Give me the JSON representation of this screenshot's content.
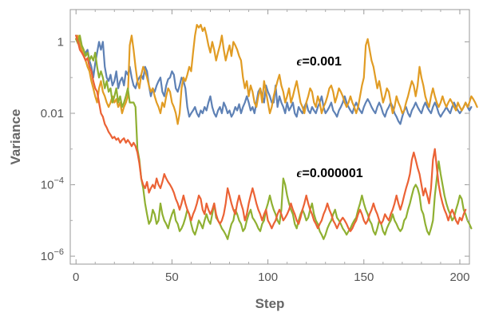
{
  "chart_data": {
    "type": "line",
    "xlabel": "Step",
    "ylabel": "Variance",
    "xlim": [
      -3,
      205
    ],
    "ylim": [
      6e-07,
      8
    ],
    "yscale": "log",
    "xticks": [
      {
        "value": 0,
        "label": "0"
      },
      {
        "value": 50,
        "label": "50"
      },
      {
        "value": 100,
        "label": "100"
      },
      {
        "value": 150,
        "label": "150"
      },
      {
        "value": 200,
        "label": "200"
      }
    ],
    "yticks": [
      {
        "value": 1e-06,
        "base": "10",
        "exp": "−6"
      },
      {
        "value": 0.0001,
        "base": "10",
        "exp": "−4"
      },
      {
        "value": 0.01,
        "base": "0.01",
        "exp": ""
      },
      {
        "value": 1,
        "base": "1",
        "exp": ""
      }
    ],
    "grid": false,
    "annotations": [
      {
        "text": "=0.001",
        "symbol": "ϵ",
        "x": 115,
        "y": 0.3
      },
      {
        "text": "=0.000001",
        "symbol": "ϵ",
        "x": 115,
        "y": 0.00022
      }
    ],
    "series": [
      {
        "color": "#5e81b5",
        "values": [
          1.5,
          1.2,
          0.8,
          0.6,
          0.4,
          0.5,
          0.6,
          0.3,
          0.2,
          0.1,
          0.25,
          0.5,
          1.0,
          0.6,
          1.0,
          0.2,
          0.1,
          0.08,
          0.12,
          0.06,
          0.08,
          0.15,
          0.05,
          0.08,
          0.1,
          0.06,
          0.15,
          0.12,
          0.2,
          0.1,
          0.06,
          0.05,
          0.08,
          0.1,
          0.12,
          0.09,
          0.2,
          0.15,
          0.06,
          0.03,
          0.05,
          0.04,
          0.06,
          0.08,
          0.1,
          0.04,
          0.03,
          0.06,
          0.09,
          0.1,
          0.15,
          0.12,
          0.05,
          0.04,
          0.06,
          0.1,
          0.08,
          0.05,
          0.015,
          0.008,
          0.01,
          0.012,
          0.015,
          0.01,
          0.008,
          0.012,
          0.01,
          0.015,
          0.012,
          0.02,
          0.03,
          0.015,
          0.01,
          0.008,
          0.012,
          0.015,
          0.01,
          0.02,
          0.015,
          0.01,
          0.012,
          0.008,
          0.01,
          0.015,
          0.012,
          0.018,
          0.01,
          0.015,
          0.02,
          0.03,
          0.02,
          0.012,
          0.015,
          0.01,
          0.02,
          0.04,
          0.05,
          0.03,
          0.02,
          0.06,
          0.04,
          0.03,
          0.02,
          0.02,
          0.06,
          0.015,
          0.03,
          0.02,
          0.015,
          0.01,
          0.02,
          0.012,
          0.015,
          0.02,
          0.01,
          0.008,
          0.015,
          0.012,
          0.01,
          0.015,
          0.02,
          0.012,
          0.01,
          0.015,
          0.012,
          0.01,
          0.015,
          0.02,
          0.03,
          0.015,
          0.01,
          0.012,
          0.015,
          0.02,
          0.012,
          0.01,
          0.008,
          0.012,
          0.015,
          0.02,
          0.03,
          0.02,
          0.015,
          0.012,
          0.01,
          0.015,
          0.02,
          0.015,
          0.012,
          0.01,
          0.015,
          0.02,
          0.025,
          0.02,
          0.015,
          0.012,
          0.01,
          0.015,
          0.02,
          0.015,
          0.01,
          0.008,
          0.012,
          0.015,
          0.02,
          0.015,
          0.01,
          0.008,
          0.006,
          0.005,
          0.008,
          0.012,
          0.015,
          0.01,
          0.008,
          0.012,
          0.015,
          0.02,
          0.015,
          0.012,
          0.01,
          0.015,
          0.02,
          0.015,
          0.012,
          0.01,
          0.015,
          0.02,
          0.015,
          0.01,
          0.008,
          0.01,
          0.012,
          0.015,
          0.012,
          0.01,
          0.015,
          0.02,
          0.015,
          0.012,
          0.01,
          0.012,
          0.015,
          0.02,
          0.015,
          0.012,
          0.015
        ]
      },
      {
        "color": "#e19c24",
        "values": [
          1.2,
          1.5,
          1.0,
          0.6,
          0.4,
          0.3,
          0.2,
          0.15,
          0.08,
          0.05,
          0.03,
          0.02,
          0.05,
          0.08,
          0.04,
          0.03,
          0.02,
          0.015,
          0.02,
          0.03,
          0.02,
          0.025,
          0.015,
          0.02,
          0.01,
          0.015,
          0.02,
          0.03,
          0.8,
          1.5,
          0.6,
          0.2,
          0.08,
          0.05,
          0.12,
          0.2,
          0.15,
          0.1,
          0.06,
          0.04,
          0.05,
          0.03,
          0.02,
          0.015,
          0.01,
          0.02,
          0.015,
          0.03,
          0.05,
          0.04,
          0.02,
          0.015,
          0.01,
          0.005,
          0.01,
          0.05,
          0.1,
          0.08,
          0.12,
          0.2,
          0.15,
          0.5,
          1.5,
          3.0,
          2.5,
          3.0,
          2.0,
          2.5,
          1.5,
          0.8,
          0.5,
          1.0,
          0.6,
          0.3,
          0.5,
          0.8,
          1.5,
          0.6,
          0.3,
          0.5,
          0.8,
          0.4,
          1.0,
          0.8,
          0.6,
          0.4,
          0.3,
          0.1,
          0.05,
          0.08,
          0.03,
          0.06,
          0.04,
          0.02,
          0.015,
          0.03,
          0.05,
          0.02,
          0.08,
          0.04,
          0.02,
          0.01,
          0.015,
          0.03,
          0.05,
          0.08,
          0.12,
          0.06,
          0.04,
          0.02,
          0.03,
          0.05,
          0.02,
          0.03,
          0.05,
          0.08,
          0.04,
          0.02,
          0.015,
          0.01,
          0.02,
          0.03,
          0.05,
          0.04,
          0.02,
          0.015,
          0.03,
          0.02,
          0.01,
          0.015,
          0.02,
          0.03,
          0.05,
          0.06,
          0.04,
          0.02,
          0.03,
          0.05,
          0.04,
          0.03,
          0.02,
          0.015,
          0.02,
          0.03,
          0.02,
          0.015,
          0.01,
          0.015,
          0.03,
          0.06,
          0.1,
          0.8,
          1.2,
          0.6,
          0.3,
          0.2,
          0.1,
          0.05,
          0.08,
          0.04,
          0.02,
          0.03,
          0.05,
          0.04,
          0.02,
          0.01,
          0.015,
          0.03,
          0.02,
          0.015,
          0.01,
          0.012,
          0.02,
          0.03,
          0.05,
          0.08,
          0.06,
          0.03,
          0.06,
          0.2,
          0.1,
          0.06,
          0.03,
          0.02,
          0.015,
          0.03,
          0.05,
          0.03,
          0.02,
          0.015,
          0.02,
          0.03,
          0.02,
          0.015,
          0.02,
          0.025,
          0.02,
          0.015,
          0.012,
          0.02,
          0.015,
          0.012,
          0.015,
          0.02,
          0.015,
          0.02,
          0.03,
          0.025,
          0.02,
          0.015
        ]
      },
      {
        "color": "#8fb032",
        "values": [
          1.2,
          0.9,
          1.5,
          0.8,
          0.6,
          0.4,
          0.5,
          0.3,
          0.4,
          0.3,
          0.5,
          0.2,
          0.1,
          0.15,
          0.1,
          0.05,
          0.08,
          0.04,
          0.05,
          0.02,
          0.03,
          0.05,
          0.02,
          0.03,
          0.015,
          0.02,
          0.03,
          0.05,
          0.02,
          0.02,
          0.02,
          0.015,
          0.001,
          0.0005,
          0.00015,
          8e-05,
          3e-05,
          1.5e-05,
          8e-06,
          1e-05,
          2e-05,
          1.5e-05,
          8e-06,
          1e-05,
          3e-05,
          1.5e-05,
          1e-05,
          8e-06,
          6e-06,
          1e-05,
          1.5e-05,
          2e-05,
          1e-05,
          8e-06,
          5e-06,
          6e-06,
          8e-06,
          1.2e-05,
          2e-05,
          1.5e-05,
          8e-06,
          5e-06,
          4e-06,
          6e-06,
          1e-05,
          8e-06,
          6e-06,
          1e-05,
          1.5e-05,
          1e-05,
          8e-06,
          1.5e-05,
          3e-05,
          1.2e-05,
          1e-05,
          8e-06,
          6e-06,
          5e-06,
          4e-06,
          3e-06,
          5e-06,
          8e-06,
          1e-05,
          2e-05,
          1.5e-05,
          1e-05,
          8e-06,
          5e-06,
          6e-06,
          1e-05,
          1.5e-05,
          2e-05,
          1.2e-05,
          1e-05,
          8e-06,
          6e-06,
          5e-06,
          8e-06,
          1e-05,
          2e-05,
          3e-05,
          5e-05,
          3e-05,
          2e-05,
          1.5e-05,
          1e-05,
          8e-06,
          2e-05,
          0.00015,
          0.0001,
          5e-05,
          3e-05,
          2e-05,
          1.5e-05,
          8e-06,
          6e-06,
          1e-05,
          1.5e-05,
          2e-05,
          1.5e-05,
          1e-05,
          1.2e-05,
          2e-05,
          3e-05,
          1.5e-05,
          1e-05,
          8e-06,
          5e-06,
          4e-06,
          3e-06,
          4e-06,
          6e-06,
          8e-06,
          1e-05,
          1.5e-05,
          2e-05,
          1.2e-05,
          1e-05,
          8e-06,
          6e-06,
          5e-06,
          4e-06,
          5e-06,
          6e-06,
          8e-06,
          1e-05,
          1.2e-05,
          2e-05,
          3e-05,
          5e-05,
          3e-05,
          2e-05,
          1.5e-05,
          1e-05,
          8e-06,
          5e-06,
          4e-06,
          6e-06,
          1e-05,
          8e-06,
          5e-06,
          4e-06,
          6e-06,
          8e-06,
          1e-05,
          1.5e-05,
          1e-05,
          8e-06,
          6e-06,
          5e-06,
          6e-06,
          1e-05,
          1.2e-05,
          2e-05,
          3e-05,
          5e-05,
          8e-05,
          0.0001,
          8e-05,
          5e-05,
          2e-05,
          1.5e-05,
          8e-06,
          5e-06,
          4e-06,
          6e-06,
          1e-05,
          5e-05,
          0.00015,
          0.00045,
          0.0002,
          0.0001,
          5e-05,
          3e-05,
          2e-05,
          1.5e-05,
          1e-05,
          1.2e-05,
          2e-05,
          3e-05,
          5e-05,
          4e-05,
          2e-05,
          1.5e-05,
          1e-05,
          8e-06,
          6e-06
        ]
      },
      {
        "color": "#eb6235",
        "values": [
          1.5,
          1.0,
          0.6,
          0.5,
          0.4,
          0.3,
          0.35,
          0.2,
          0.15,
          0.08,
          0.05,
          0.04,
          0.02,
          0.01,
          0.008,
          0.005,
          0.004,
          0.003,
          0.0025,
          0.002,
          0.0022,
          0.0018,
          0.002,
          0.0015,
          0.0018,
          0.002,
          0.0015,
          0.0018,
          0.0015,
          0.0012,
          0.0015,
          0.0012,
          0.0008,
          0.0004,
          0.00015,
          0.0001,
          8e-05,
          0.00012,
          6e-05,
          8e-05,
          0.0001,
          8e-05,
          0.00015,
          0.0001,
          8e-05,
          0.00012,
          0.0002,
          0.00015,
          0.00012,
          0.0001,
          8e-05,
          6e-05,
          4e-05,
          3e-05,
          2e-05,
          3e-05,
          5e-05,
          3e-05,
          2e-05,
          1.5e-05,
          1e-05,
          1.5e-05,
          2e-05,
          3e-05,
          5e-05,
          4e-05,
          2e-05,
          1.5e-05,
          3e-05,
          2e-05,
          1.5e-05,
          2e-05,
          3e-05,
          1.5e-05,
          1e-05,
          8e-06,
          1e-05,
          1.5e-05,
          3e-05,
          8e-05,
          5e-05,
          3e-05,
          2e-05,
          1.5e-05,
          3e-05,
          5e-05,
          3e-05,
          2e-05,
          1e-05,
          1.5e-05,
          3e-05,
          5e-05,
          8e-05,
          5e-05,
          3e-05,
          2e-05,
          1.5e-05,
          1e-05,
          1.5e-05,
          2e-05,
          1e-05,
          8e-06,
          6e-06,
          8e-06,
          1e-05,
          1.5e-05,
          2e-05,
          1.5e-05,
          1e-05,
          1.2e-05,
          1.5e-05,
          2e-05,
          3e-05,
          2e-05,
          1.5e-05,
          1e-05,
          8e-06,
          1.2e-05,
          2e-05,
          3e-05,
          5e-05,
          3e-05,
          2e-05,
          1.5e-05,
          1e-05,
          8e-06,
          6e-06,
          8e-06,
          1e-05,
          1.5e-05,
          2e-05,
          3e-05,
          2e-05,
          1.5e-05,
          1e-05,
          8e-06,
          6e-06,
          8e-06,
          1e-05,
          1.2e-05,
          1e-05,
          8e-06,
          6e-06,
          5e-06,
          6e-06,
          8e-06,
          1e-05,
          1.5e-05,
          2e-05,
          1.5e-05,
          1e-05,
          8e-06,
          1e-05,
          1.5e-05,
          2e-05,
          3e-05,
          2e-05,
          1.5e-05,
          1e-05,
          8e-06,
          1e-05,
          1.5e-05,
          1.2e-05,
          1e-05,
          1.5e-05,
          2e-05,
          3e-05,
          5e-05,
          3e-05,
          2e-05,
          3e-05,
          5e-05,
          8e-05,
          0.00012,
          0.0002,
          0.0005,
          0.0008,
          0.0005,
          0.0003,
          0.0002,
          0.0001,
          5e-05,
          8e-05,
          5e-05,
          3e-05,
          8e-05,
          0.0005,
          0.001,
          0.0003,
          0.0001,
          5e-05,
          3e-05,
          2e-05,
          1.5e-05,
          1e-05,
          1.5e-05,
          2e-05,
          1.5e-05,
          1e-05,
          8e-06,
          1.2e-05,
          1e-05,
          1.5e-05,
          2e-05
        ]
      }
    ]
  }
}
